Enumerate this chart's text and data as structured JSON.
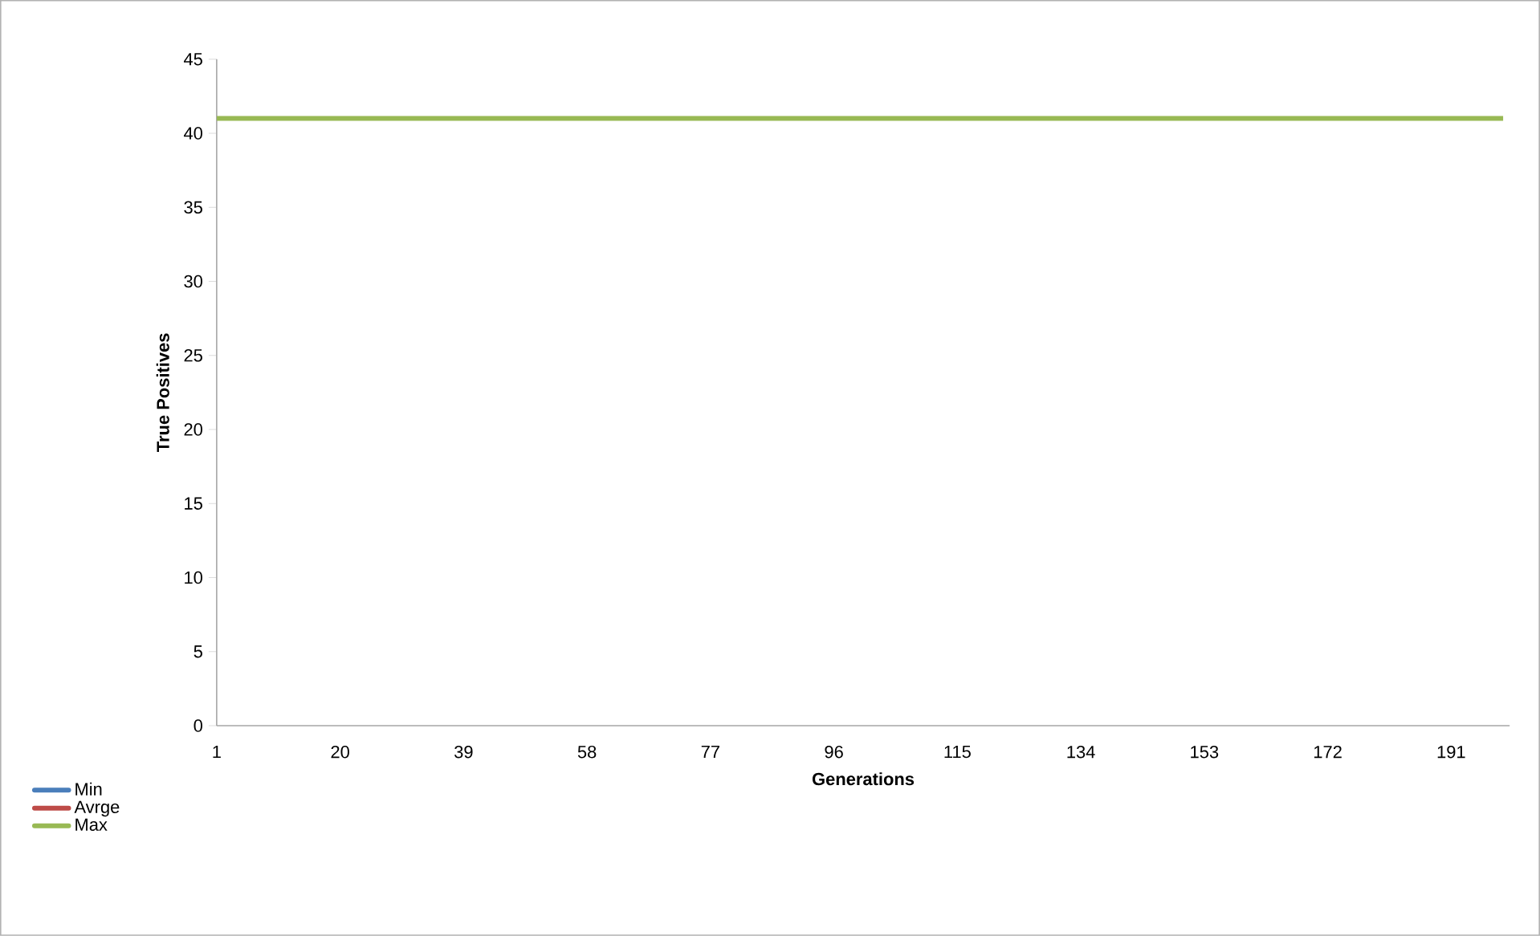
{
  "chart_data": {
    "type": "line",
    "xlabel": "Generations",
    "ylabel": "True Positives",
    "xlim": [
      1,
      200
    ],
    "xticks": [
      1,
      20,
      39,
      58,
      77,
      96,
      115,
      134,
      153,
      172,
      191
    ],
    "ylim": [
      0,
      45
    ],
    "yticks": [
      0,
      5,
      10,
      15,
      20,
      25,
      30,
      35,
      40,
      45
    ],
    "x": [
      1,
      199
    ],
    "series": [
      {
        "name": "Min",
        "color": "#4a7ebb",
        "values": [
          null,
          null
        ]
      },
      {
        "name": "Avrge",
        "color": "#be4b48",
        "values": [
          null,
          null
        ]
      },
      {
        "name": "Max",
        "color": "#98b954",
        "values": [
          41,
          41
        ]
      }
    ],
    "grid": false,
    "legend": "bottom left",
    "marker": "none",
    "line_style": "solid"
  }
}
